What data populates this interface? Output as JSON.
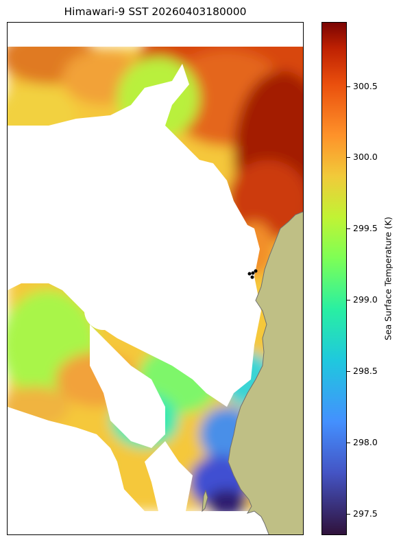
{
  "title": "Himawari-9 SST 20260403180000",
  "colorbar": {
    "label": "Sea Surface Temperature (K)",
    "min": 297.35,
    "max": 300.95,
    "ticks": [
      {
        "value": 300.5,
        "label": "300.5"
      },
      {
        "value": 300.0,
        "label": "300.0"
      },
      {
        "value": 299.5,
        "label": "299.5"
      },
      {
        "value": 299.0,
        "label": "299.0"
      },
      {
        "value": 298.5,
        "label": "298.5"
      },
      {
        "value": 298.0,
        "label": "298.0"
      },
      {
        "value": 297.5,
        "label": "297.5"
      }
    ],
    "colormap": "turbo"
  },
  "colors": {
    "land": "#bfbf85",
    "coast": "#6e6e6e",
    "no_data": "#ffffff",
    "markers": "#000000"
  },
  "map": {
    "markers_count": 4
  }
}
